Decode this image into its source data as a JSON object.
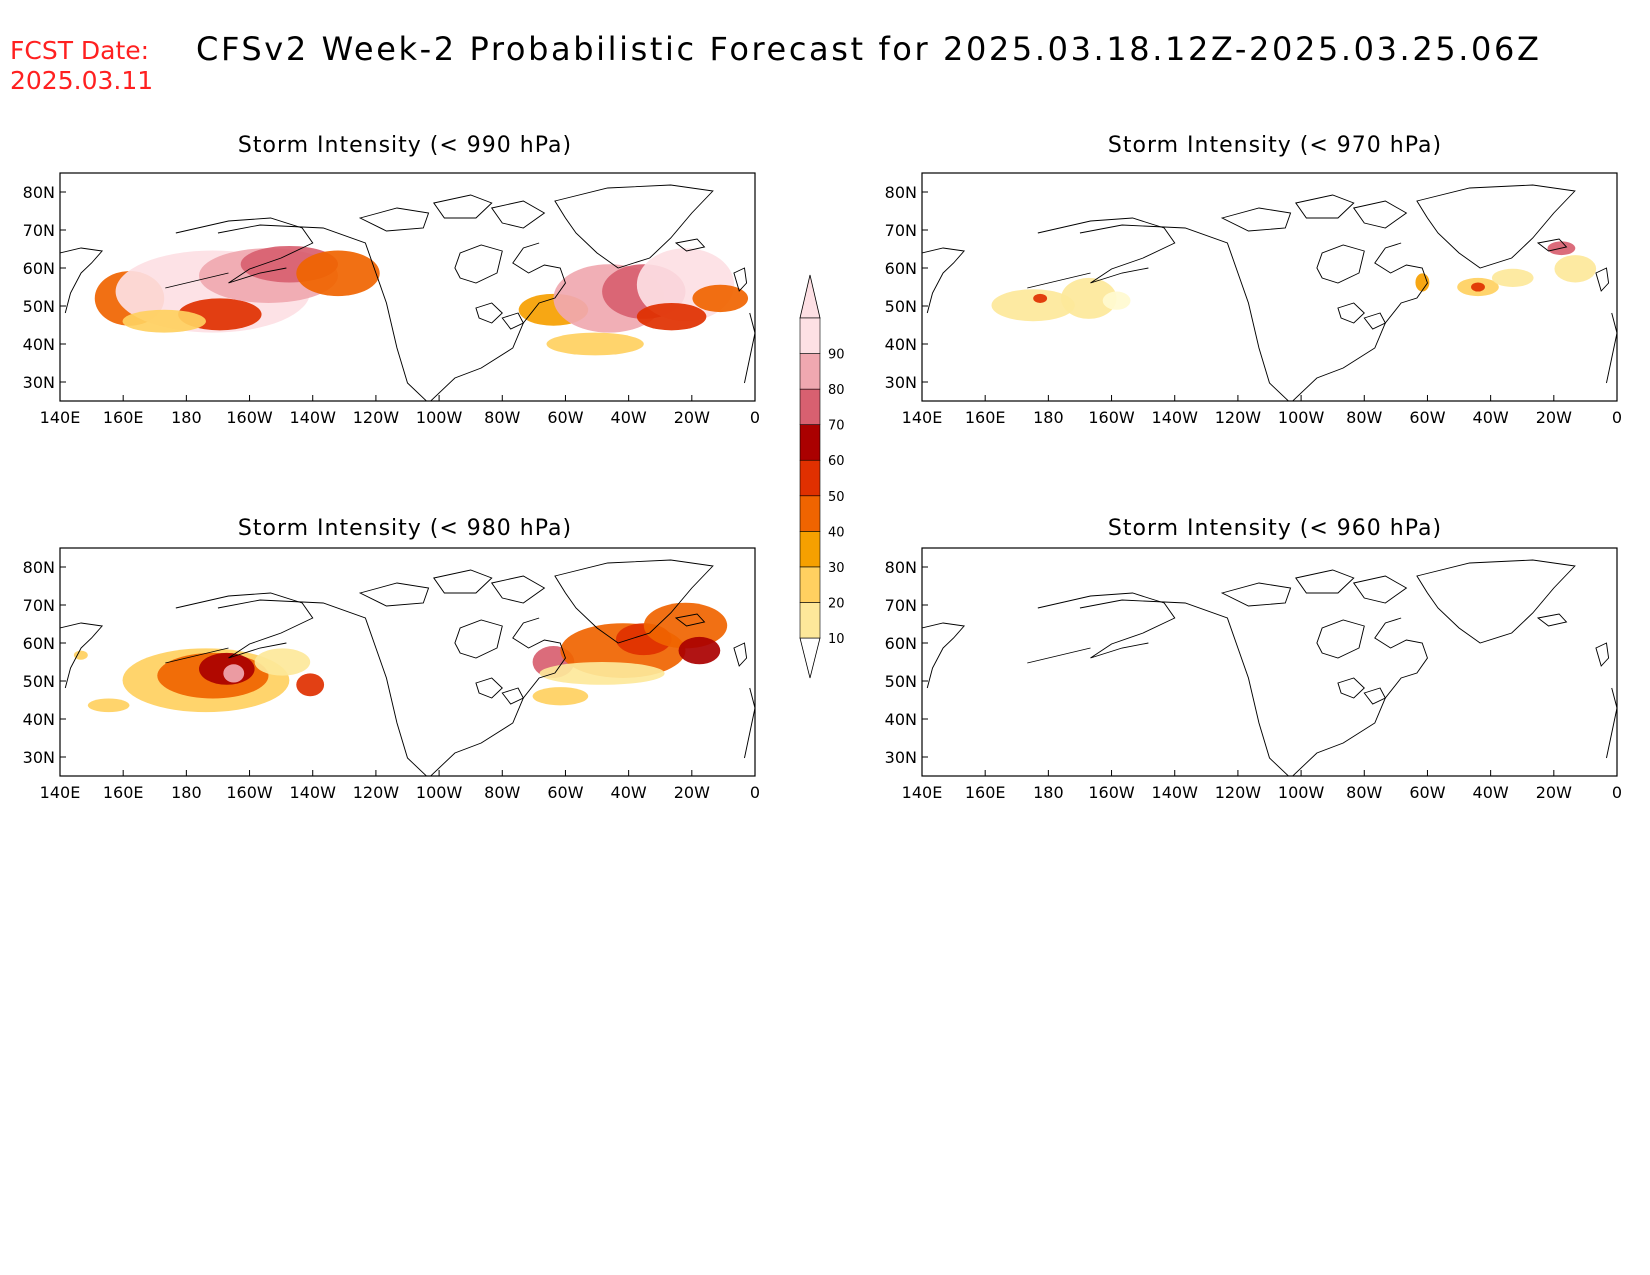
{
  "header": {
    "fcst_label": "FCST Date:",
    "fcst_date": "2025.03.11",
    "title": "CFSv2 Week-2 Probabilistic Forecast for 2025.03.18.12Z-2025.03.25.06Z"
  },
  "map_axes": {
    "lon_ticks": [
      "140E",
      "160E",
      "180",
      "160W",
      "140W",
      "120W",
      "100W",
      "80W",
      "60W",
      "40W",
      "20W",
      "0"
    ],
    "lat_ticks": [
      "80N",
      "70N",
      "60N",
      "50N",
      "40N",
      "30N"
    ],
    "lon_range": [
      "140E",
      "0"
    ],
    "lat_range": [
      "25N",
      "85N"
    ]
  },
  "colorbar": {
    "levels": [
      "10",
      "20",
      "30",
      "40",
      "50",
      "60",
      "70",
      "80",
      "90"
    ],
    "colors": [
      "#fffad0",
      "#fde89a",
      "#ffd060",
      "#f6a000",
      "#f06400",
      "#e03000",
      "#aa0000",
      "#d86070",
      "#f0a8b0",
      "#fde0e4"
    ]
  },
  "panels": [
    {
      "title": "Storm Intensity (< 990 hPa)"
    },
    {
      "title": "Storm Intensity (< 970 hPa)"
    },
    {
      "title": "Storm Intensity (< 980 hPa)"
    },
    {
      "title": "Storm Intensity (< 960 hPa)"
    }
  ]
}
